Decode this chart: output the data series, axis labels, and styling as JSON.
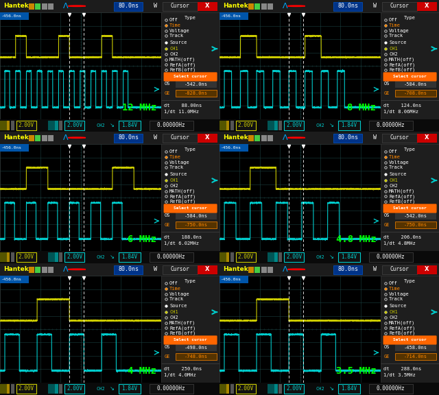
{
  "panels": [
    {
      "label": "12 MHz",
      "clock_freq": "11.0MHz",
      "dt": "88.00ns",
      "os": "-542.0ns",
      "cursor_e": "-828.0ns",
      "n_clocks": 12,
      "burst_duty": 0.55
    },
    {
      "label": "8 MHz",
      "clock_freq": "8.06MHz",
      "dt": "124.0ns",
      "os": "-584.0ns",
      "cursor_e": "-708.0ns",
      "n_clocks": 8,
      "burst_duty": 0.5
    },
    {
      "label": "6 MHz",
      "clock_freq": "6.02MHz",
      "dt": "188.0ns",
      "os": "-584.0ns",
      "cursor_e": "-750.0ns",
      "n_clocks": 6,
      "burst_duty": 0.5
    },
    {
      "label": "4.8 MHz",
      "clock_freq": "4.8MHz",
      "dt": "206.0ns",
      "os": "-542.0ns",
      "cursor_e": "-750.0ns",
      "n_clocks": 5,
      "burst_duty": 0.5
    },
    {
      "label": "4 MHz",
      "clock_freq": "4.0MHz",
      "dt": "250.0ns",
      "os": "-498.0ns",
      "cursor_e": "-748.0ns",
      "n_clocks": 4,
      "burst_duty": 0.5
    },
    {
      "label": "3.5 MHz",
      "clock_freq": "3.5MHz",
      "dt": "288.0ns",
      "os": "-458.0ns",
      "cursor_e": "-714.0ns",
      "n_clocks": 4,
      "burst_duty": 0.45
    }
  ],
  "bg_color": "#111111",
  "scope_bg": "#000000",
  "grid_color": "#1a4040",
  "toolbar_bg": "#1c1c1c",
  "cursor_panel_bg": "#1e1e1e",
  "status_bg": "#0a0a0a",
  "ch1_color": "#cccc00",
  "ch2_color": "#00cccc",
  "label_color": "#00ff00",
  "orange_color": "#ff8800",
  "select_cursor_color": "#ff6600",
  "white": "#ffffff",
  "hantek_yellow": "#ffff00",
  "timebase": "80.0ns",
  "ch1_scale": "2.00V",
  "ch2_scale": "2.00V",
  "ref_voltage": "1.84V"
}
